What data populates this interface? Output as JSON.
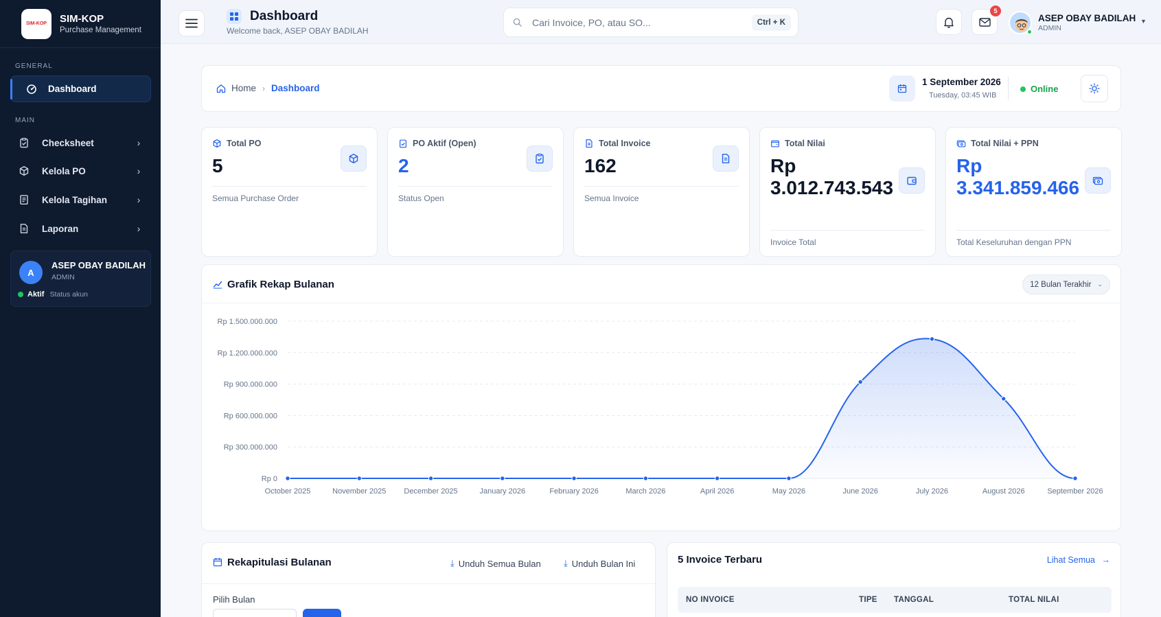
{
  "brand": {
    "logo_text": "SIM-KOP",
    "title": "SIM-KOP",
    "subtitle": "Purchase Management"
  },
  "sidebar": {
    "section_general": "GENERAL",
    "section_main": "MAIN",
    "active_item": {
      "label": "Dashboard",
      "icon": "gauge-icon"
    },
    "items": [
      {
        "label": "Checksheet",
        "icon": "clipboard-check-icon"
      },
      {
        "label": "Kelola PO",
        "icon": "box-icon"
      },
      {
        "label": "Kelola Tagihan",
        "icon": "receipt-icon"
      },
      {
        "label": "Laporan",
        "icon": "file-text-icon"
      }
    ],
    "user": {
      "initial": "A",
      "name": "ASEP OBAY BADILAH",
      "role": "ADMIN",
      "status": "Aktif",
      "status_label": "Status akun"
    }
  },
  "header": {
    "title": "Dashboard",
    "welcome": "Welcome back, ASEP OBAY BADILAH",
    "search_placeholder": "Cari Invoice, PO, atau SO...",
    "shortcut": "Ctrl + K",
    "mail_badge": "5",
    "user_name": "ASEP OBAY BADILAH",
    "user_role": "ADMIN"
  },
  "breadcrumb": {
    "home": "Home",
    "current": "Dashboard",
    "date": "1 September 2026",
    "time": "Tuesday, 03:45 WIB",
    "status": "Online"
  },
  "stats": [
    {
      "label": "Total PO",
      "value": "5",
      "desc": "Semua Purchase Order",
      "icon": "box-icon"
    },
    {
      "label": "PO Aktif (Open)",
      "value": "2",
      "desc": "Status Open",
      "icon": "clipboard-check-icon"
    },
    {
      "label": "Total Invoice",
      "value": "162",
      "desc": "Semua Invoice",
      "icon": "file-text-icon"
    },
    {
      "label": "Total Nilai",
      "value": "Rp 3.012.743.543",
      "desc": "Invoice Total",
      "icon": "wallet-icon"
    },
    {
      "label": "Total Nilai + PPN",
      "value": "Rp 3.341.859.466",
      "desc": "Total Keseluruhan dengan PPN",
      "icon": "money-icon"
    }
  ],
  "chart_section": {
    "title": "Grafik Rekap Bulanan",
    "range": "12 Bulan Terakhir"
  },
  "chart_data": {
    "type": "area",
    "title": "Grafik Rekap Bulanan",
    "categories": [
      "October 2025",
      "November 2025",
      "December 2025",
      "January 2026",
      "February 2026",
      "March 2026",
      "April 2026",
      "May 2026",
      "June 2026",
      "July 2026",
      "August 2026",
      "September 2026"
    ],
    "values": [
      0,
      0,
      0,
      0,
      0,
      0,
      0,
      0,
      920000000,
      1330000000,
      760000000,
      0
    ],
    "yticks": [
      "Rp 0",
      "Rp 300.000.000",
      "Rp 600.000.000",
      "Rp 900.000.000",
      "Rp 1.200.000.000",
      "Rp 1.500.000.000"
    ],
    "ylim": [
      0,
      1500000000
    ],
    "grid": true,
    "color": "#2563eb"
  },
  "rekap": {
    "title": "Rekapitulasi Bulanan",
    "download_all": "Unduh Semua Bulan",
    "download_this": "Unduh Bulan Ini",
    "pick_month": "Pilih Bulan"
  },
  "invoices": {
    "title": "5 Invoice Terbaru",
    "see_all": "Lihat Semua",
    "columns": [
      "NO INVOICE",
      "TIPE",
      "TANGGAL",
      "TOTAL NILAI"
    ]
  }
}
